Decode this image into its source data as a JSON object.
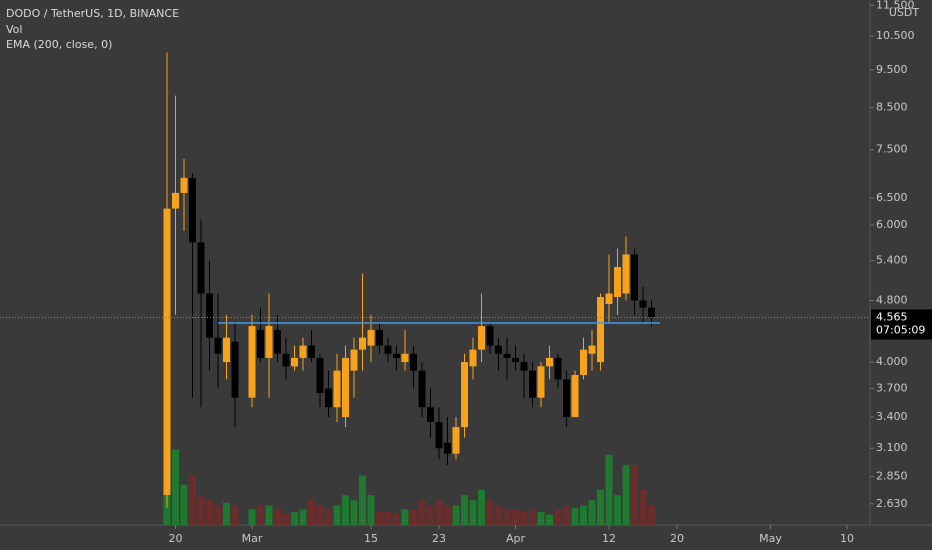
{
  "chart_data": {
    "type": "candlestick",
    "title": "DODO / TetherUS, 1D, BINANCE",
    "indicators": [
      "Vol",
      "EMA (200, close, 0)"
    ],
    "currency": "USDT",
    "log_scale": true,
    "grid": false,
    "up_color": "#f7a21b",
    "down_color": "#000000",
    "volume_up_color": "#1f7a30",
    "volume_down_color": "#6b2c2c",
    "x": [
      "02-19",
      "02-20",
      "02-21",
      "02-22",
      "02-23",
      "02-24",
      "02-25",
      "02-26",
      "02-27",
      "03-01",
      "03-02",
      "03-03",
      "03-04",
      "03-05",
      "03-06",
      "03-07",
      "03-08",
      "03-09",
      "03-10",
      "03-11",
      "03-12",
      "03-13",
      "03-14",
      "03-15",
      "03-16",
      "03-17",
      "03-18",
      "03-19",
      "03-20",
      "03-21",
      "03-22",
      "03-23",
      "03-24",
      "03-25",
      "03-26",
      "03-27",
      "03-28",
      "03-29",
      "03-30",
      "03-31",
      "04-01",
      "04-02",
      "04-03",
      "04-04",
      "04-05",
      "04-06",
      "04-07",
      "04-08",
      "04-09",
      "04-10",
      "04-11",
      "04-12",
      "04-13",
      "04-14",
      "04-15",
      "04-16",
      "04-17"
    ],
    "open": [
      2.7,
      6.3,
      6.6,
      6.9,
      5.7,
      4.9,
      4.3,
      4.0,
      4.25,
      3.6,
      4.4,
      4.05,
      4.4,
      4.1,
      3.95,
      4.05,
      4.2,
      4.05,
      3.7,
      3.5,
      3.4,
      3.9,
      4.15,
      4.2,
      4.4,
      4.2,
      4.1,
      4.0,
      4.1,
      3.9,
      3.5,
      3.35,
      3.15,
      3.05,
      3.3,
      3.95,
      4.15,
      4.45,
      4.2,
      4.1,
      4.05,
      4.0,
      3.9,
      3.6,
      3.95,
      4.05,
      3.8,
      3.4,
      3.85,
      4.1,
      4.0,
      4.75,
      4.85,
      4.9,
      5.5,
      4.8,
      4.7
    ],
    "high": [
      10.0,
      8.8,
      7.3,
      7.0,
      6.1,
      5.4,
      4.9,
      4.6,
      4.5,
      4.6,
      4.7,
      4.9,
      4.6,
      4.3,
      4.2,
      4.3,
      4.4,
      4.1,
      3.9,
      4.1,
      4.2,
      4.3,
      5.2,
      4.6,
      4.5,
      4.3,
      4.2,
      4.4,
      4.2,
      4.0,
      3.7,
      3.5,
      3.4,
      3.4,
      4.1,
      4.3,
      4.9,
      4.5,
      4.3,
      4.3,
      4.2,
      4.1,
      4.0,
      4.0,
      4.2,
      4.1,
      3.9,
      3.9,
      4.3,
      4.4,
      4.9,
      5.5,
      5.6,
      5.8,
      5.6,
      5.0,
      4.8
    ],
    "low": [
      2.6,
      4.6,
      5.9,
      3.6,
      3.5,
      3.9,
      3.7,
      3.8,
      3.3,
      3.5,
      4.0,
      3.6,
      4.0,
      3.8,
      3.9,
      3.9,
      4.0,
      3.5,
      3.4,
      3.35,
      3.3,
      3.6,
      3.9,
      4.0,
      4.1,
      4.0,
      3.9,
      3.9,
      3.7,
      3.4,
      3.2,
      3.0,
      2.95,
      3.0,
      3.2,
      3.8,
      4.0,
      4.1,
      3.9,
      3.8,
      3.9,
      3.6,
      3.5,
      3.5,
      3.8,
      3.7,
      3.3,
      3.4,
      3.8,
      3.9,
      3.9,
      4.5,
      4.6,
      4.8,
      4.6,
      4.5,
      4.45
    ],
    "close": [
      6.3,
      6.6,
      6.9,
      5.7,
      4.9,
      4.3,
      4.1,
      4.3,
      3.6,
      4.45,
      4.05,
      4.45,
      4.1,
      3.95,
      4.05,
      4.2,
      4.05,
      3.65,
      3.5,
      3.9,
      4.05,
      4.15,
      4.3,
      4.4,
      4.2,
      4.1,
      4.05,
      4.1,
      3.9,
      3.5,
      3.35,
      3.1,
      3.05,
      3.3,
      4.0,
      4.15,
      4.45,
      4.2,
      4.1,
      4.05,
      4.0,
      3.9,
      3.6,
      3.95,
      4.05,
      3.8,
      3.4,
      3.85,
      4.15,
      4.2,
      4.85,
      4.9,
      5.3,
      5.5,
      4.8,
      4.7,
      4.565
    ],
    "volume": [
      100,
      58,
      31,
      38,
      22,
      19,
      15,
      17,
      15,
      12,
      15,
      15,
      12,
      9,
      10,
      12,
      19,
      15,
      12,
      15,
      23,
      19,
      38,
      23,
      10,
      10,
      9,
      12,
      12,
      19,
      15,
      19,
      15,
      15,
      23,
      19,
      27,
      19,
      15,
      12,
      12,
      10,
      12,
      10,
      8,
      12,
      15,
      13,
      15,
      19,
      27,
      54,
      23,
      46,
      46,
      27,
      15
    ],
    "volume_ylim": [
      0,
      100
    ],
    "ylim": [
      2.47,
      11.68
    ],
    "yticks": [
      {
        "value": 11.5,
        "label": "11.500"
      },
      {
        "value": 10.5,
        "label": "10.500"
      },
      {
        "value": 9.5,
        "label": "9.500"
      },
      {
        "value": 8.5,
        "label": "8.500"
      },
      {
        "value": 7.5,
        "label": "7.500"
      },
      {
        "value": 6.5,
        "label": "6.500"
      },
      {
        "value": 6,
        "label": "6.000"
      },
      {
        "value": 5.4,
        "label": "5.400"
      },
      {
        "value": 4.8,
        "label": "4.800"
      },
      {
        "value": 4,
        "label": "4.000"
      },
      {
        "value": 3.7,
        "label": "3.700"
      },
      {
        "value": 3.4,
        "label": "3.400"
      },
      {
        "value": 3.1,
        "label": "3.100"
      },
      {
        "value": 2.85,
        "label": "2.850"
      },
      {
        "value": 2.63,
        "label": "2.630"
      }
    ],
    "xticks": [
      {
        "value": "02-20",
        "label": "20"
      },
      {
        "value": "03-01",
        "label": "Mar"
      },
      {
        "value": "03-15",
        "label": "15"
      },
      {
        "value": "03-23",
        "label": "23"
      },
      {
        "value": "04-01",
        "label": "Apr"
      },
      {
        "value": "04-12",
        "label": "12"
      },
      {
        "value": "04-20",
        "label": "20"
      },
      {
        "value": "05-01",
        "label": "May"
      },
      {
        "value": "05-10",
        "label": "10"
      }
    ],
    "last_price": {
      "value": 4.565,
      "label": "4.565"
    },
    "countdown": "07:05:09",
    "level_line": {
      "value": 4.49,
      "from": "02-25",
      "to": "04-18",
      "color": "#3d9be9"
    }
  }
}
